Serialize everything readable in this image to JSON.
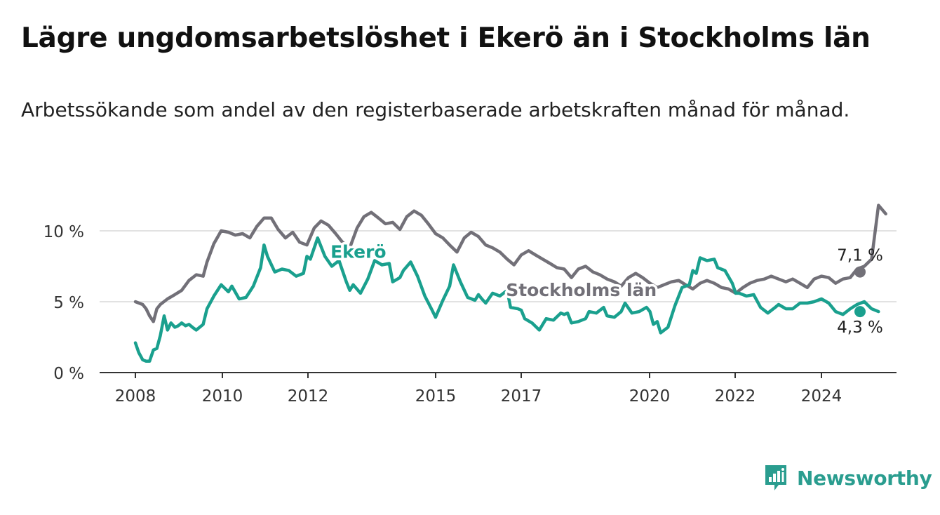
{
  "header": {
    "title": "Lägre ungdomsarbetslöshet i Ekerö än i Stockholms län",
    "subtitle": "Arbetssökande som andel av den registerbaserade arbetskraften månad för månad."
  },
  "brand": {
    "name": "Newsworthy",
    "icon": "newsworthy-logo-icon",
    "color": "#2a9d8f"
  },
  "chart_data": {
    "type": "line",
    "title": "Lägre ungdomsarbetslöshet i Ekerö än i Stockholms län",
    "subtitle": "Arbetssökande som andel av den registerbaserade arbetskraften månad för månad.",
    "xlabel": "",
    "ylabel": "",
    "x_range": [
      2008.0,
      2025.58
    ],
    "ylim": [
      0,
      12
    ],
    "x_ticks": [
      {
        "value": 2008,
        "label": "2008"
      },
      {
        "value": 2010,
        "label": "2010"
      },
      {
        "value": 2012,
        "label": "2012"
      },
      {
        "value": 2015,
        "label": "2015"
      },
      {
        "value": 2017,
        "label": "2017"
      },
      {
        "value": 2020,
        "label": "2020"
      },
      {
        "value": 2022,
        "label": "2022"
      },
      {
        "value": 2024,
        "label": "2024"
      }
    ],
    "y_ticks": [
      {
        "value": 0,
        "label": "0 %"
      },
      {
        "value": 5,
        "label": "5 %"
      },
      {
        "value": 10,
        "label": "10 %"
      }
    ],
    "grid": true,
    "legend": "direct labels on lines",
    "series": [
      {
        "name": "Stockholms län",
        "color": "#727078",
        "end_label": "7,1 %",
        "points": [
          [
            2008.0,
            5.0
          ],
          [
            2008.17,
            4.8
          ],
          [
            2008.25,
            4.5
          ],
          [
            2008.33,
            4.0
          ],
          [
            2008.42,
            3.6
          ],
          [
            2008.5,
            4.5
          ],
          [
            2008.58,
            4.8
          ],
          [
            2008.75,
            5.2
          ],
          [
            2008.92,
            5.5
          ],
          [
            2009.08,
            5.8
          ],
          [
            2009.25,
            6.5
          ],
          [
            2009.42,
            6.9
          ],
          [
            2009.58,
            6.8
          ],
          [
            2009.67,
            7.8
          ],
          [
            2009.83,
            9.1
          ],
          [
            2010.0,
            10.0
          ],
          [
            2010.17,
            9.9
          ],
          [
            2010.33,
            9.7
          ],
          [
            2010.5,
            9.8
          ],
          [
            2010.67,
            9.5
          ],
          [
            2010.83,
            10.3
          ],
          [
            2011.0,
            10.9
          ],
          [
            2011.17,
            10.9
          ],
          [
            2011.33,
            10.1
          ],
          [
            2011.5,
            9.5
          ],
          [
            2011.67,
            9.9
          ],
          [
            2011.83,
            9.2
          ],
          [
            2012.0,
            9.0
          ],
          [
            2012.17,
            10.2
          ],
          [
            2012.33,
            10.7
          ],
          [
            2012.5,
            10.4
          ],
          [
            2012.67,
            9.8
          ],
          [
            2012.83,
            9.2
          ],
          [
            2013.0,
            8.8
          ],
          [
            2013.17,
            10.2
          ],
          [
            2013.33,
            11.0
          ],
          [
            2013.5,
            11.3
          ],
          [
            2013.67,
            10.9
          ],
          [
            2013.83,
            10.5
          ],
          [
            2014.0,
            10.6
          ],
          [
            2014.17,
            10.1
          ],
          [
            2014.33,
            11.0
          ],
          [
            2014.5,
            11.4
          ],
          [
            2014.67,
            11.1
          ],
          [
            2014.83,
            10.5
          ],
          [
            2015.0,
            9.8
          ],
          [
            2015.17,
            9.5
          ],
          [
            2015.33,
            9.0
          ],
          [
            2015.5,
            8.5
          ],
          [
            2015.67,
            9.5
          ],
          [
            2015.83,
            9.9
          ],
          [
            2016.0,
            9.6
          ],
          [
            2016.17,
            9.0
          ],
          [
            2016.33,
            8.8
          ],
          [
            2016.5,
            8.5
          ],
          [
            2016.67,
            8.0
          ],
          [
            2016.83,
            7.6
          ],
          [
            2017.0,
            8.3
          ],
          [
            2017.17,
            8.6
          ],
          [
            2017.33,
            8.3
          ],
          [
            2017.5,
            8.0
          ],
          [
            2017.67,
            7.7
          ],
          [
            2017.83,
            7.4
          ],
          [
            2018.0,
            7.3
          ],
          [
            2018.17,
            6.7
          ],
          [
            2018.33,
            7.3
          ],
          [
            2018.5,
            7.5
          ],
          [
            2018.67,
            7.1
          ],
          [
            2018.83,
            6.9
          ],
          [
            2019.0,
            6.6
          ],
          [
            2019.17,
            6.4
          ],
          [
            2019.33,
            6.1
          ],
          [
            2019.5,
            6.7
          ],
          [
            2019.67,
            7.0
          ],
          [
            2019.83,
            6.7
          ],
          [
            2020.0,
            6.3
          ],
          [
            2020.17,
            6.0
          ],
          [
            2020.33,
            6.2
          ],
          [
            2020.5,
            6.4
          ],
          [
            2020.67,
            6.5
          ],
          [
            2020.83,
            6.2
          ],
          [
            2021.0,
            5.9
          ],
          [
            2021.17,
            6.3
          ],
          [
            2021.33,
            6.5
          ],
          [
            2021.5,
            6.3
          ],
          [
            2021.67,
            6.0
          ],
          [
            2021.83,
            5.9
          ],
          [
            2022.0,
            5.6
          ],
          [
            2022.17,
            6.0
          ],
          [
            2022.33,
            6.3
          ],
          [
            2022.5,
            6.5
          ],
          [
            2022.67,
            6.6
          ],
          [
            2022.83,
            6.8
          ],
          [
            2023.0,
            6.6
          ],
          [
            2023.17,
            6.4
          ],
          [
            2023.33,
            6.6
          ],
          [
            2023.5,
            6.3
          ],
          [
            2023.67,
            6.0
          ],
          [
            2023.83,
            6.6
          ],
          [
            2024.0,
            6.8
          ],
          [
            2024.17,
            6.7
          ],
          [
            2024.33,
            6.3
          ],
          [
            2024.5,
            6.6
          ],
          [
            2024.67,
            6.7
          ],
          [
            2024.83,
            7.3
          ],
          [
            2025.0,
            7.5
          ],
          [
            2025.17,
            8.0
          ],
          [
            2025.33,
            11.8
          ],
          [
            2025.5,
            11.2
          ],
          [
            2025.58,
            7.1
          ]
        ]
      },
      {
        "name": "Ekerö",
        "color": "#1aa08e",
        "end_label": "4,3 %",
        "points": [
          [
            2008.0,
            2.1
          ],
          [
            2008.08,
            1.4
          ],
          [
            2008.17,
            0.9
          ],
          [
            2008.25,
            0.8
          ],
          [
            2008.33,
            0.8
          ],
          [
            2008.42,
            1.6
          ],
          [
            2008.5,
            1.7
          ],
          [
            2008.58,
            2.6
          ],
          [
            2008.67,
            4.0
          ],
          [
            2008.75,
            3.0
          ],
          [
            2008.83,
            3.5
          ],
          [
            2008.92,
            3.2
          ],
          [
            2009.0,
            3.3
          ],
          [
            2009.08,
            3.5
          ],
          [
            2009.17,
            3.3
          ],
          [
            2009.25,
            3.4
          ],
          [
            2009.33,
            3.2
          ],
          [
            2009.42,
            3.0
          ],
          [
            2009.58,
            3.4
          ],
          [
            2009.67,
            4.5
          ],
          [
            2009.83,
            5.4
          ],
          [
            2010.0,
            6.2
          ],
          [
            2010.17,
            5.7
          ],
          [
            2010.25,
            6.1
          ],
          [
            2010.42,
            5.2
          ],
          [
            2010.58,
            5.3
          ],
          [
            2010.75,
            6.1
          ],
          [
            2010.92,
            7.4
          ],
          [
            2011.0,
            9.0
          ],
          [
            2011.08,
            8.2
          ],
          [
            2011.25,
            7.1
          ],
          [
            2011.42,
            7.3
          ],
          [
            2011.58,
            7.2
          ],
          [
            2011.75,
            6.8
          ],
          [
            2011.92,
            7.0
          ],
          [
            2012.0,
            8.2
          ],
          [
            2012.08,
            8.0
          ],
          [
            2012.25,
            9.5
          ],
          [
            2012.42,
            8.2
          ],
          [
            2012.58,
            7.5
          ],
          [
            2012.75,
            7.9
          ],
          [
            2012.92,
            6.4
          ],
          [
            2013.0,
            5.8
          ],
          [
            2013.08,
            6.2
          ],
          [
            2013.25,
            5.6
          ],
          [
            2013.42,
            6.6
          ],
          [
            2013.58,
            7.9
          ],
          [
            2013.75,
            7.6
          ],
          [
            2013.92,
            7.7
          ],
          [
            2014.0,
            6.4
          ],
          [
            2014.17,
            6.7
          ],
          [
            2014.25,
            7.2
          ],
          [
            2014.42,
            7.8
          ],
          [
            2014.58,
            6.8
          ],
          [
            2014.75,
            5.4
          ],
          [
            2014.92,
            4.4
          ],
          [
            2015.0,
            3.9
          ],
          [
            2015.17,
            5.1
          ],
          [
            2015.33,
            6.1
          ],
          [
            2015.42,
            7.6
          ],
          [
            2015.58,
            6.4
          ],
          [
            2015.75,
            5.3
          ],
          [
            2015.92,
            5.1
          ],
          [
            2016.0,
            5.5
          ],
          [
            2016.08,
            5.2
          ],
          [
            2016.17,
            4.9
          ],
          [
            2016.33,
            5.6
          ],
          [
            2016.5,
            5.4
          ],
          [
            2016.67,
            5.8
          ],
          [
            2016.75,
            4.6
          ],
          [
            2016.92,
            4.5
          ],
          [
            2017.0,
            4.4
          ],
          [
            2017.08,
            3.8
          ],
          [
            2017.25,
            3.5
          ],
          [
            2017.42,
            3.0
          ],
          [
            2017.58,
            3.8
          ],
          [
            2017.75,
            3.7
          ],
          [
            2017.92,
            4.2
          ],
          [
            2018.0,
            4.1
          ],
          [
            2018.08,
            4.2
          ],
          [
            2018.17,
            3.5
          ],
          [
            2018.33,
            3.6
          ],
          [
            2018.5,
            3.8
          ],
          [
            2018.58,
            4.3
          ],
          [
            2018.75,
            4.2
          ],
          [
            2018.92,
            4.6
          ],
          [
            2019.0,
            4.0
          ],
          [
            2019.17,
            3.9
          ],
          [
            2019.33,
            4.3
          ],
          [
            2019.42,
            4.9
          ],
          [
            2019.58,
            4.2
          ],
          [
            2019.75,
            4.3
          ],
          [
            2019.92,
            4.6
          ],
          [
            2020.0,
            4.3
          ],
          [
            2020.08,
            3.4
          ],
          [
            2020.17,
            3.6
          ],
          [
            2020.25,
            2.8
          ],
          [
            2020.42,
            3.2
          ],
          [
            2020.58,
            4.7
          ],
          [
            2020.75,
            6.0
          ],
          [
            2020.92,
            6.2
          ],
          [
            2021.0,
            7.2
          ],
          [
            2021.08,
            7.0
          ],
          [
            2021.17,
            8.1
          ],
          [
            2021.33,
            7.9
          ],
          [
            2021.5,
            8.0
          ],
          [
            2021.58,
            7.4
          ],
          [
            2021.75,
            7.2
          ],
          [
            2021.92,
            6.3
          ],
          [
            2022.0,
            5.6
          ],
          [
            2022.08,
            5.6
          ],
          [
            2022.25,
            5.4
          ],
          [
            2022.42,
            5.5
          ],
          [
            2022.58,
            4.6
          ],
          [
            2022.75,
            4.2
          ],
          [
            2022.92,
            4.6
          ],
          [
            2023.0,
            4.8
          ],
          [
            2023.17,
            4.5
          ],
          [
            2023.33,
            4.5
          ],
          [
            2023.5,
            4.9
          ],
          [
            2023.67,
            4.9
          ],
          [
            2023.83,
            5.0
          ],
          [
            2024.0,
            5.2
          ],
          [
            2024.17,
            4.9
          ],
          [
            2024.33,
            4.3
          ],
          [
            2024.5,
            4.1
          ],
          [
            2024.67,
            4.5
          ],
          [
            2024.83,
            4.8
          ],
          [
            2025.0,
            5.0
          ],
          [
            2025.17,
            4.5
          ],
          [
            2025.33,
            4.3
          ],
          [
            2025.58,
            4.3
          ]
        ]
      }
    ],
    "line_labels": [
      {
        "text": "Ekerö",
        "series": "Ekerö",
        "at_x": 2013.2,
        "at_y": 8.1
      },
      {
        "text": "Stockholms län",
        "series": "Stockholms län",
        "at_x": 2018.4,
        "at_y": 5.4
      }
    ]
  }
}
